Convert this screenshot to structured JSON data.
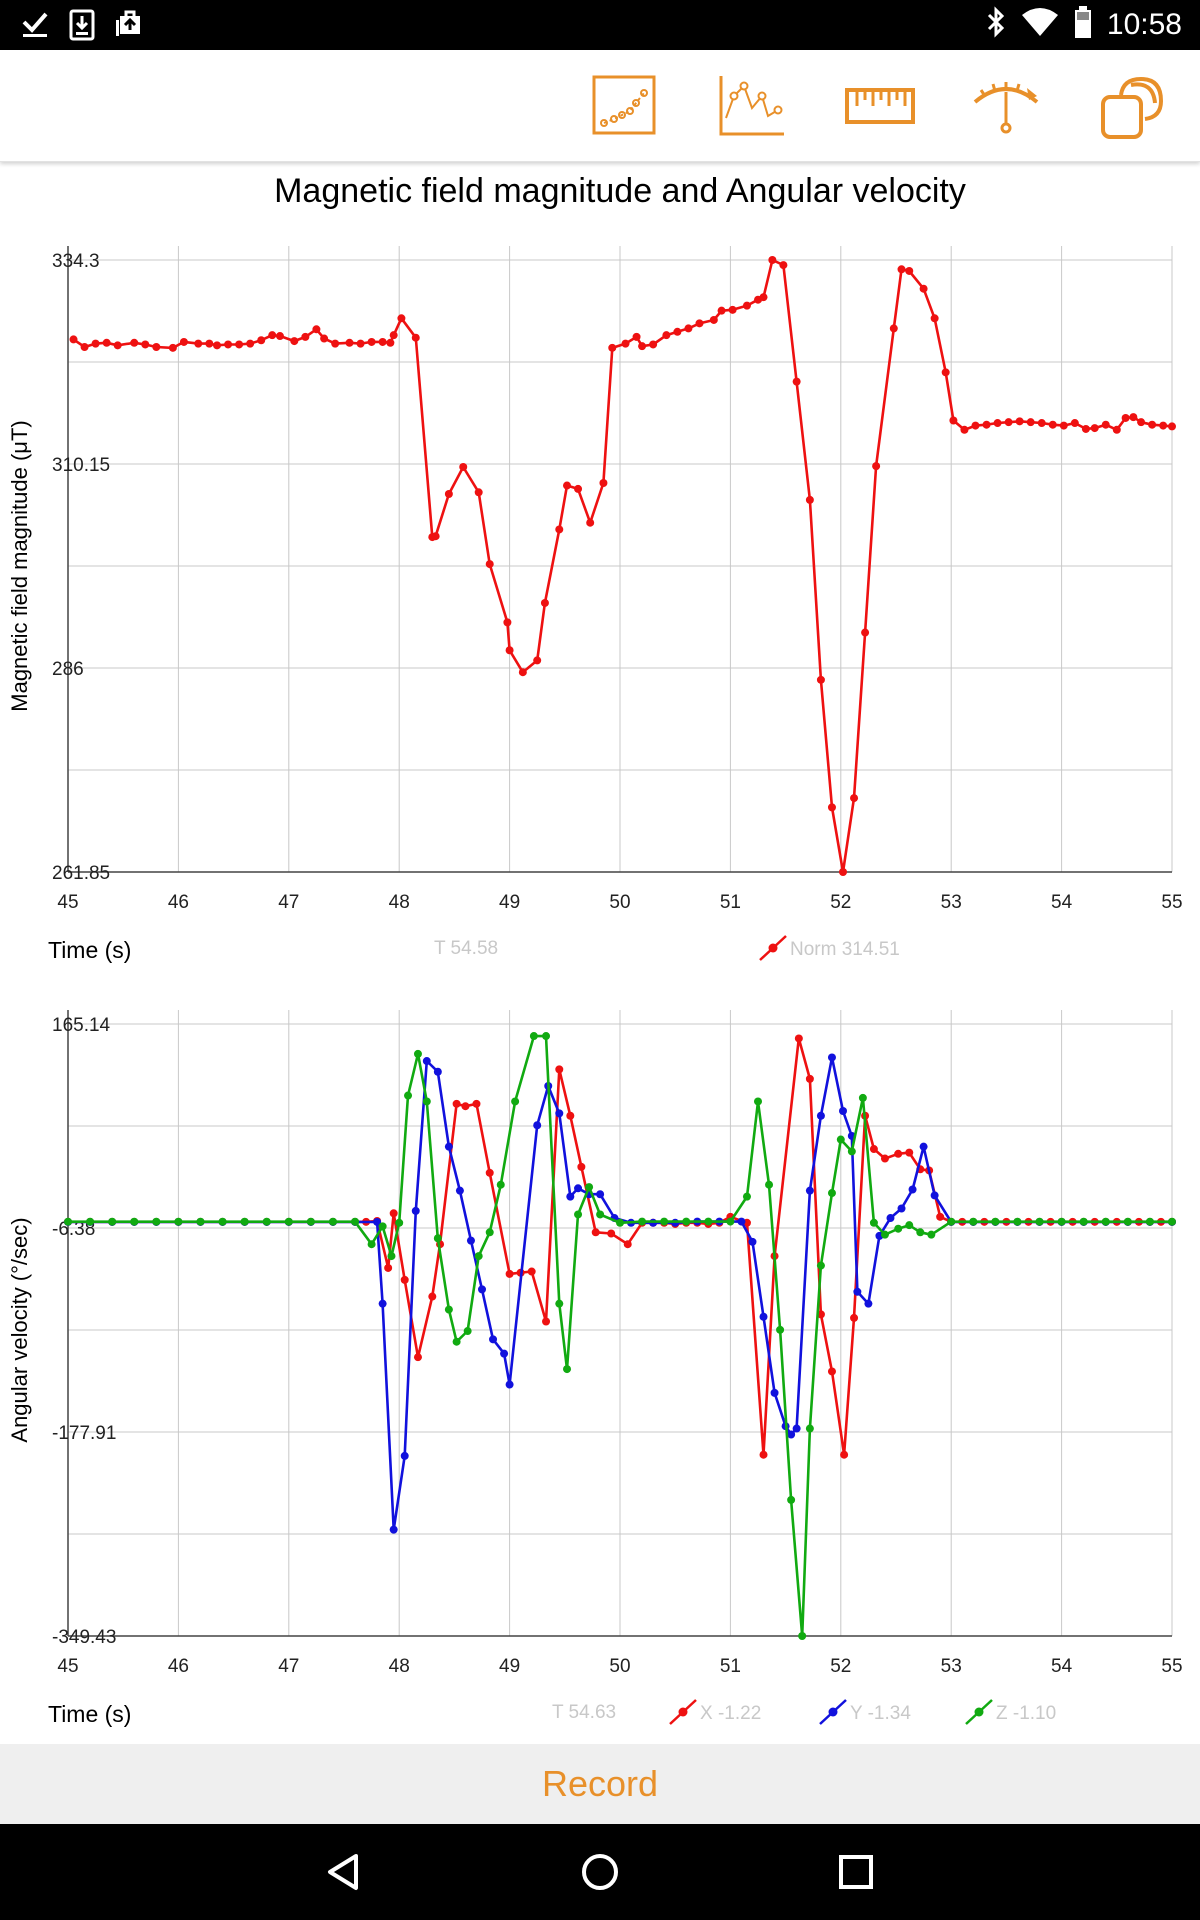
{
  "status_bar": {
    "time": "10:58",
    "left_icons": [
      "check-icon",
      "download-icon",
      "briefcase-upload-icon"
    ],
    "right_icons": [
      "bluetooth-icon",
      "wifi-icon",
      "battery-icon"
    ]
  },
  "toolbar": {
    "buttons": [
      {
        "name": "graph-scatter-icon"
      },
      {
        "name": "graph-line-icon"
      },
      {
        "name": "ruler-icon"
      },
      {
        "name": "gauge-icon"
      },
      {
        "name": "multi-sensor-icon"
      }
    ],
    "accent_color": "#e8902a"
  },
  "page_title": "Magnetic field magnitude and Angular velocity",
  "record_label": "Record",
  "nav_icons": [
    "back-icon",
    "home-icon",
    "recents-icon"
  ],
  "chart_data": [
    {
      "type": "line",
      "ylabel": "Magnetic field magnitude (μT)",
      "xlabel": "Time (s)",
      "xlim": [
        45,
        55
      ],
      "ylim": [
        261.85,
        334.3
      ],
      "x_ticks": [
        "45",
        "46",
        "47",
        "48",
        "49",
        "50",
        "51",
        "52",
        "53",
        "54",
        "55"
      ],
      "y_ticks": [
        "334.3",
        "310.15",
        "286",
        "261.85"
      ],
      "cursor_label": "T 54.58",
      "grid": true,
      "series": [
        {
          "name": "Norm 314.51",
          "color": "#ee1111",
          "x": [
            45.05,
            45.15,
            45.25,
            45.35,
            45.45,
            45.6,
            45.7,
            45.8,
            45.95,
            46.05,
            46.18,
            46.28,
            46.35,
            46.45,
            46.55,
            46.65,
            46.75,
            46.85,
            46.92,
            47.05,
            47.15,
            47.25,
            47.32,
            47.42,
            47.55,
            47.65,
            47.75,
            47.85,
            47.92,
            47.95,
            48.02,
            48.15,
            48.3,
            48.33,
            48.45,
            48.58,
            48.72,
            48.82,
            48.98,
            49.0,
            49.12,
            49.25,
            49.32,
            49.45,
            49.52,
            49.62,
            49.73,
            49.85,
            49.93,
            50.05,
            50.15,
            50.2,
            50.3,
            50.42,
            50.52,
            50.62,
            50.72,
            50.85,
            50.92,
            51.02,
            51.15,
            51.25,
            51.3,
            51.38,
            51.48,
            51.6,
            51.72,
            51.82,
            51.92,
            52.02,
            52.12,
            52.22,
            52.32,
            52.48,
            52.55,
            52.62,
            52.75,
            52.85,
            52.95,
            53.02,
            53.12,
            53.22,
            53.32,
            53.42,
            53.52,
            53.62,
            53.72,
            53.82,
            53.92,
            54.02,
            54.12,
            54.22,
            54.3,
            54.4,
            54.5,
            54.58,
            54.65,
            54.72,
            54.82,
            54.92,
            55.0
          ],
          "y": [
            324.9,
            324.0,
            324.4,
            324.5,
            324.2,
            324.5,
            324.3,
            324.0,
            323.9,
            324.6,
            324.4,
            324.4,
            324.2,
            324.3,
            324.3,
            324.4,
            324.8,
            325.4,
            325.3,
            324.7,
            325.2,
            326.1,
            325.0,
            324.4,
            324.5,
            324.4,
            324.6,
            324.6,
            324.5,
            325.4,
            327.4,
            325.1,
            301.5,
            301.6,
            306.6,
            309.8,
            306.8,
            298.3,
            291.4,
            288.1,
            285.5,
            286.9,
            293.7,
            302.4,
            307.6,
            307.2,
            303.2,
            307.9,
            323.9,
            324.4,
            325.2,
            324.1,
            324.3,
            325.4,
            325.8,
            326.2,
            326.8,
            327.2,
            328.3,
            328.4,
            328.9,
            329.6,
            329.9,
            334.3,
            333.7,
            319.9,
            305.9,
            284.6,
            269.5,
            261.85,
            270.6,
            290.2,
            309.9,
            326.2,
            333.2,
            333.0,
            330.9,
            327.4,
            321.0,
            315.3,
            314.2,
            314.7,
            314.8,
            315.0,
            315.1,
            315.2,
            315.1,
            315.0,
            314.8,
            314.7,
            315.0,
            314.3,
            314.4,
            314.8,
            314.2,
            315.6,
            315.7,
            315.1,
            314.8,
            314.7,
            314.6
          ]
        }
      ]
    },
    {
      "type": "line",
      "ylabel": "Angular velocity (°/sec)",
      "xlabel": "Time (s)",
      "xlim": [
        45,
        55
      ],
      "ylim": [
        -349.43,
        165.14
      ],
      "x_ticks": [
        "45",
        "46",
        "47",
        "48",
        "49",
        "50",
        "51",
        "52",
        "53",
        "54",
        "55"
      ],
      "y_ticks": [
        "165.14",
        "-6.38",
        "-177.91",
        "-349.43"
      ],
      "cursor_label": "T 54.63",
      "grid": true,
      "series": [
        {
          "name": "X -1.22",
          "color": "#ee1111",
          "x": [
            45.0,
            45.2,
            45.4,
            45.6,
            45.8,
            46.0,
            46.2,
            46.4,
            46.6,
            46.8,
            47.0,
            47.2,
            47.4,
            47.6,
            47.7,
            47.8,
            47.9,
            47.95,
            48.05,
            48.17,
            48.3,
            48.37,
            48.52,
            48.6,
            48.7,
            48.82,
            49.0,
            49.1,
            49.2,
            49.33,
            49.45,
            49.55,
            49.65,
            49.78,
            49.92,
            50.07,
            50.2,
            50.3,
            50.4,
            50.5,
            50.6,
            50.7,
            50.8,
            50.9,
            51.0,
            51.15,
            51.3,
            51.4,
            51.62,
            51.72,
            51.82,
            51.92,
            52.03,
            52.12,
            52.22,
            52.3,
            52.4,
            52.52,
            52.62,
            52.72,
            52.8,
            52.9,
            53.0,
            53.1,
            53.2,
            53.3,
            53.4,
            53.5,
            53.6,
            53.7,
            53.8,
            53.9,
            54.0,
            54.1,
            54.2,
            54.3,
            54.4,
            54.5,
            54.6,
            54.7,
            54.8,
            54.9,
            55.0
          ],
          "y": [
            -1.2,
            -1.2,
            -1.2,
            -1.2,
            -1.2,
            -1.2,
            -1.2,
            -1.2,
            -1.2,
            -1.2,
            -1.2,
            -1.2,
            -1.2,
            -1.2,
            -1.2,
            -0.5,
            -40.0,
            6.0,
            -50.0,
            -115.0,
            -64.0,
            -20.0,
            98.0,
            96.0,
            98.0,
            40.0,
            -45.0,
            -44.0,
            -43.0,
            -85.0,
            127.0,
            88.0,
            45.0,
            -10.0,
            -11.0,
            -20.0,
            -2.0,
            -2.0,
            -2.0,
            -3.0,
            -2.0,
            -2.0,
            -3.0,
            -2.0,
            3.0,
            -2.0,
            -197.0,
            -30.0,
            153.0,
            119.0,
            -79.0,
            -127.0,
            -197.0,
            -82.0,
            88.0,
            60.0,
            52.0,
            56.0,
            57.0,
            43.0,
            42.0,
            3.0,
            -1.2,
            -1.2,
            -1.2,
            -1.2,
            -1.2,
            -1.2,
            -1.2,
            -1.2,
            -1.2,
            -1.2,
            -1.2,
            -1.2,
            -1.2,
            -1.2,
            -1.2,
            -1.2,
            -1.2,
            -1.2,
            -1.2,
            -1.2,
            -1.2
          ]
        },
        {
          "name": "Y -1.34",
          "color": "#1111dd",
          "x": [
            45.0,
            45.2,
            45.4,
            45.6,
            45.8,
            46.0,
            46.2,
            46.4,
            46.6,
            46.8,
            47.0,
            47.2,
            47.4,
            47.6,
            47.8,
            47.85,
            47.95,
            48.05,
            48.15,
            48.25,
            48.35,
            48.45,
            48.55,
            48.65,
            48.75,
            48.85,
            48.95,
            49.0,
            49.25,
            49.35,
            49.45,
            49.55,
            49.62,
            49.72,
            49.82,
            49.95,
            50.1,
            50.3,
            50.5,
            50.7,
            50.9,
            51.1,
            51.2,
            51.3,
            51.4,
            51.5,
            51.55,
            51.6,
            51.72,
            51.82,
            51.92,
            52.02,
            52.1,
            52.15,
            52.25,
            52.35,
            52.45,
            52.55,
            52.65,
            52.75,
            52.85,
            53.0,
            53.2,
            53.4,
            53.6,
            53.8,
            54.0,
            54.2,
            54.4,
            54.6,
            54.8,
            55.0
          ],
          "y": [
            -1.3,
            -1.3,
            -1.3,
            -1.3,
            -1.3,
            -1.3,
            -1.3,
            -1.3,
            -1.3,
            -1.3,
            -1.3,
            -1.3,
            -1.3,
            -1.3,
            -1.3,
            -70.0,
            -260.0,
            -198.0,
            8.0,
            134.0,
            125.0,
            62.0,
            25.0,
            -17.0,
            -58.0,
            -100.0,
            -112.0,
            -138.0,
            80.0,
            113.0,
            90.0,
            20.0,
            27.0,
            22.0,
            22.0,
            2.0,
            -2.0,
            -2.0,
            -2.0,
            -1.0,
            -1.0,
            -1.0,
            -18.0,
            -81.0,
            -145.0,
            -173.0,
            -180.0,
            -175.0,
            25.0,
            88.0,
            137.0,
            92.0,
            71.0,
            -60.0,
            -70.0,
            -13.0,
            2.0,
            10.0,
            26.0,
            62.0,
            21.0,
            -1.3,
            -1.3,
            -1.3,
            -1.3,
            -1.3,
            -1.3,
            -1.3,
            -1.3,
            -1.3,
            -1.3,
            -1.3
          ]
        },
        {
          "name": "Z -1.10",
          "color": "#11aa11",
          "x": [
            45.0,
            45.2,
            45.4,
            45.6,
            45.8,
            46.0,
            46.2,
            46.4,
            46.6,
            46.8,
            47.0,
            47.2,
            47.4,
            47.6,
            47.75,
            47.85,
            47.93,
            48.0,
            48.08,
            48.17,
            48.25,
            48.35,
            48.45,
            48.52,
            48.62,
            48.72,
            48.82,
            48.92,
            49.05,
            49.22,
            49.33,
            49.45,
            49.52,
            49.62,
            49.72,
            49.82,
            50.0,
            50.2,
            50.4,
            50.6,
            50.8,
            51.0,
            51.15,
            51.25,
            51.35,
            51.45,
            51.55,
            51.65,
            51.72,
            51.82,
            51.92,
            52.0,
            52.1,
            52.2,
            52.3,
            52.4,
            52.52,
            52.62,
            52.72,
            52.82,
            53.0,
            53.2,
            53.4,
            53.6,
            53.8,
            54.0,
            54.2,
            54.4,
            54.6,
            54.8,
            55.0
          ],
          "y": [
            -1.1,
            -1.1,
            -1.1,
            -1.1,
            -1.1,
            -1.1,
            -1.1,
            -1.1,
            -1.1,
            -1.1,
            -1.1,
            -1.1,
            -1.1,
            -1.1,
            -20.0,
            -5.0,
            -30.0,
            -2.0,
            105.0,
            140.0,
            100.0,
            -15.0,
            -75.0,
            -102.0,
            -93.0,
            -30.0,
            -10.0,
            30.0,
            100.0,
            155.0,
            155.0,
            -70.0,
            -125.0,
            5.0,
            28.0,
            5.0,
            -2.0,
            -1.0,
            -1.0,
            -1.0,
            -1.0,
            -1.0,
            20.0,
            100.0,
            30.0,
            -92.0,
            -235.0,
            -349.43,
            -175.0,
            -38.0,
            23.0,
            68.0,
            58.0,
            103.0,
            -2.0,
            -12.0,
            -7.0,
            -4.0,
            -10.0,
            -12.0,
            -1.1,
            -1.1,
            -1.1,
            -1.1,
            -1.1,
            -1.1,
            -1.1,
            -1.1,
            -1.1,
            -1.1,
            -1.1
          ]
        }
      ]
    }
  ]
}
